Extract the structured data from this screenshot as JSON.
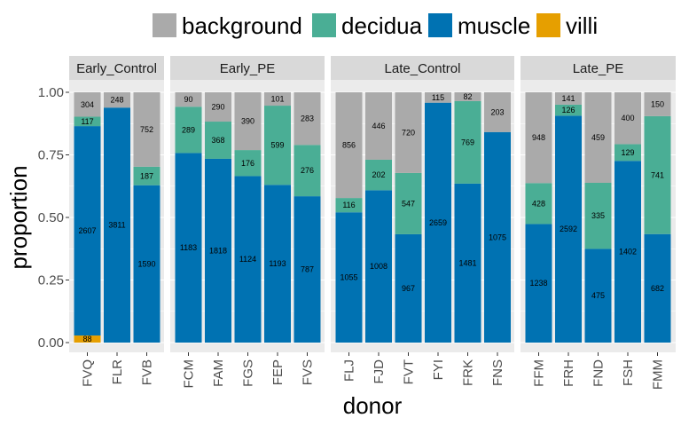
{
  "chart_data": {
    "type": "bar",
    "stacked": true,
    "normalized": true,
    "xlabel": "donor",
    "ylabel": "proportion",
    "ylim": [
      0,
      1
    ],
    "yticks": [
      "0.00",
      "0.25",
      "0.50",
      "0.75",
      "1.00"
    ],
    "legend_position": "top",
    "series": [
      {
        "name": "background",
        "color": "#AAAAAA"
      },
      {
        "name": "decidua",
        "color": "#4AAE95"
      },
      {
        "name": "muscle",
        "color": "#0072B2"
      },
      {
        "name": "villi",
        "color": "#E69F00"
      }
    ],
    "facets": [
      {
        "name": "Early_Control",
        "donors": [
          {
            "donor": "FVQ",
            "background": 304,
            "decidua": 117,
            "muscle": 2607,
            "villi": 88
          },
          {
            "donor": "FLR",
            "background": 248,
            "decidua": 0,
            "muscle": 3811,
            "villi": 0
          },
          {
            "donor": "FVB",
            "background": 752,
            "decidua": 187,
            "muscle": 1590,
            "villi": 0
          }
        ]
      },
      {
        "name": "Early_PE",
        "donors": [
          {
            "donor": "FCM",
            "background": 90,
            "decidua": 289,
            "muscle": 1183,
            "villi": 0
          },
          {
            "donor": "FAM",
            "background": 290,
            "decidua": 368,
            "muscle": 1818,
            "villi": 0
          },
          {
            "donor": "FGS",
            "background": 390,
            "decidua": 176,
            "muscle": 1124,
            "villi": 0
          },
          {
            "donor": "FEP",
            "background": 101,
            "decidua": 599,
            "muscle": 1193,
            "villi": 0
          },
          {
            "donor": "FVS",
            "background": 283,
            "decidua": 276,
            "muscle": 787,
            "villi": 0
          }
        ]
      },
      {
        "name": "Late_Control",
        "donors": [
          {
            "donor": "FLJ",
            "background": 856,
            "decidua": 116,
            "muscle": 1055,
            "villi": 0
          },
          {
            "donor": "FJD",
            "background": 446,
            "decidua": 202,
            "muscle": 1008,
            "villi": 0
          },
          {
            "donor": "FVT",
            "background": 720,
            "decidua": 547,
            "muscle": 967,
            "villi": 0
          },
          {
            "donor": "FYI",
            "background": 115,
            "decidua": 0,
            "muscle": 2659,
            "villi": 0
          },
          {
            "donor": "FRK",
            "background": 82,
            "decidua": 769,
            "muscle": 1481,
            "villi": 0
          },
          {
            "donor": "FNS",
            "background": 203,
            "decidua": 0,
            "muscle": 1075,
            "villi": 0
          }
        ]
      },
      {
        "name": "Late_PE",
        "donors": [
          {
            "donor": "FFM",
            "background": 948,
            "decidua": 428,
            "muscle": 1238,
            "villi": 0
          },
          {
            "donor": "FRH",
            "background": 141,
            "decidua": 126,
            "muscle": 2592,
            "villi": 0
          },
          {
            "donor": "FND",
            "background": 459,
            "decidua": 335,
            "muscle": 475,
            "villi": 0
          },
          {
            "donor": "FSH",
            "background": 400,
            "decidua": 129,
            "muscle": 1402,
            "villi": 0
          },
          {
            "donor": "FMM",
            "background": 150,
            "decidua": 741,
            "muscle": 682,
            "villi": 0
          }
        ]
      }
    ]
  }
}
